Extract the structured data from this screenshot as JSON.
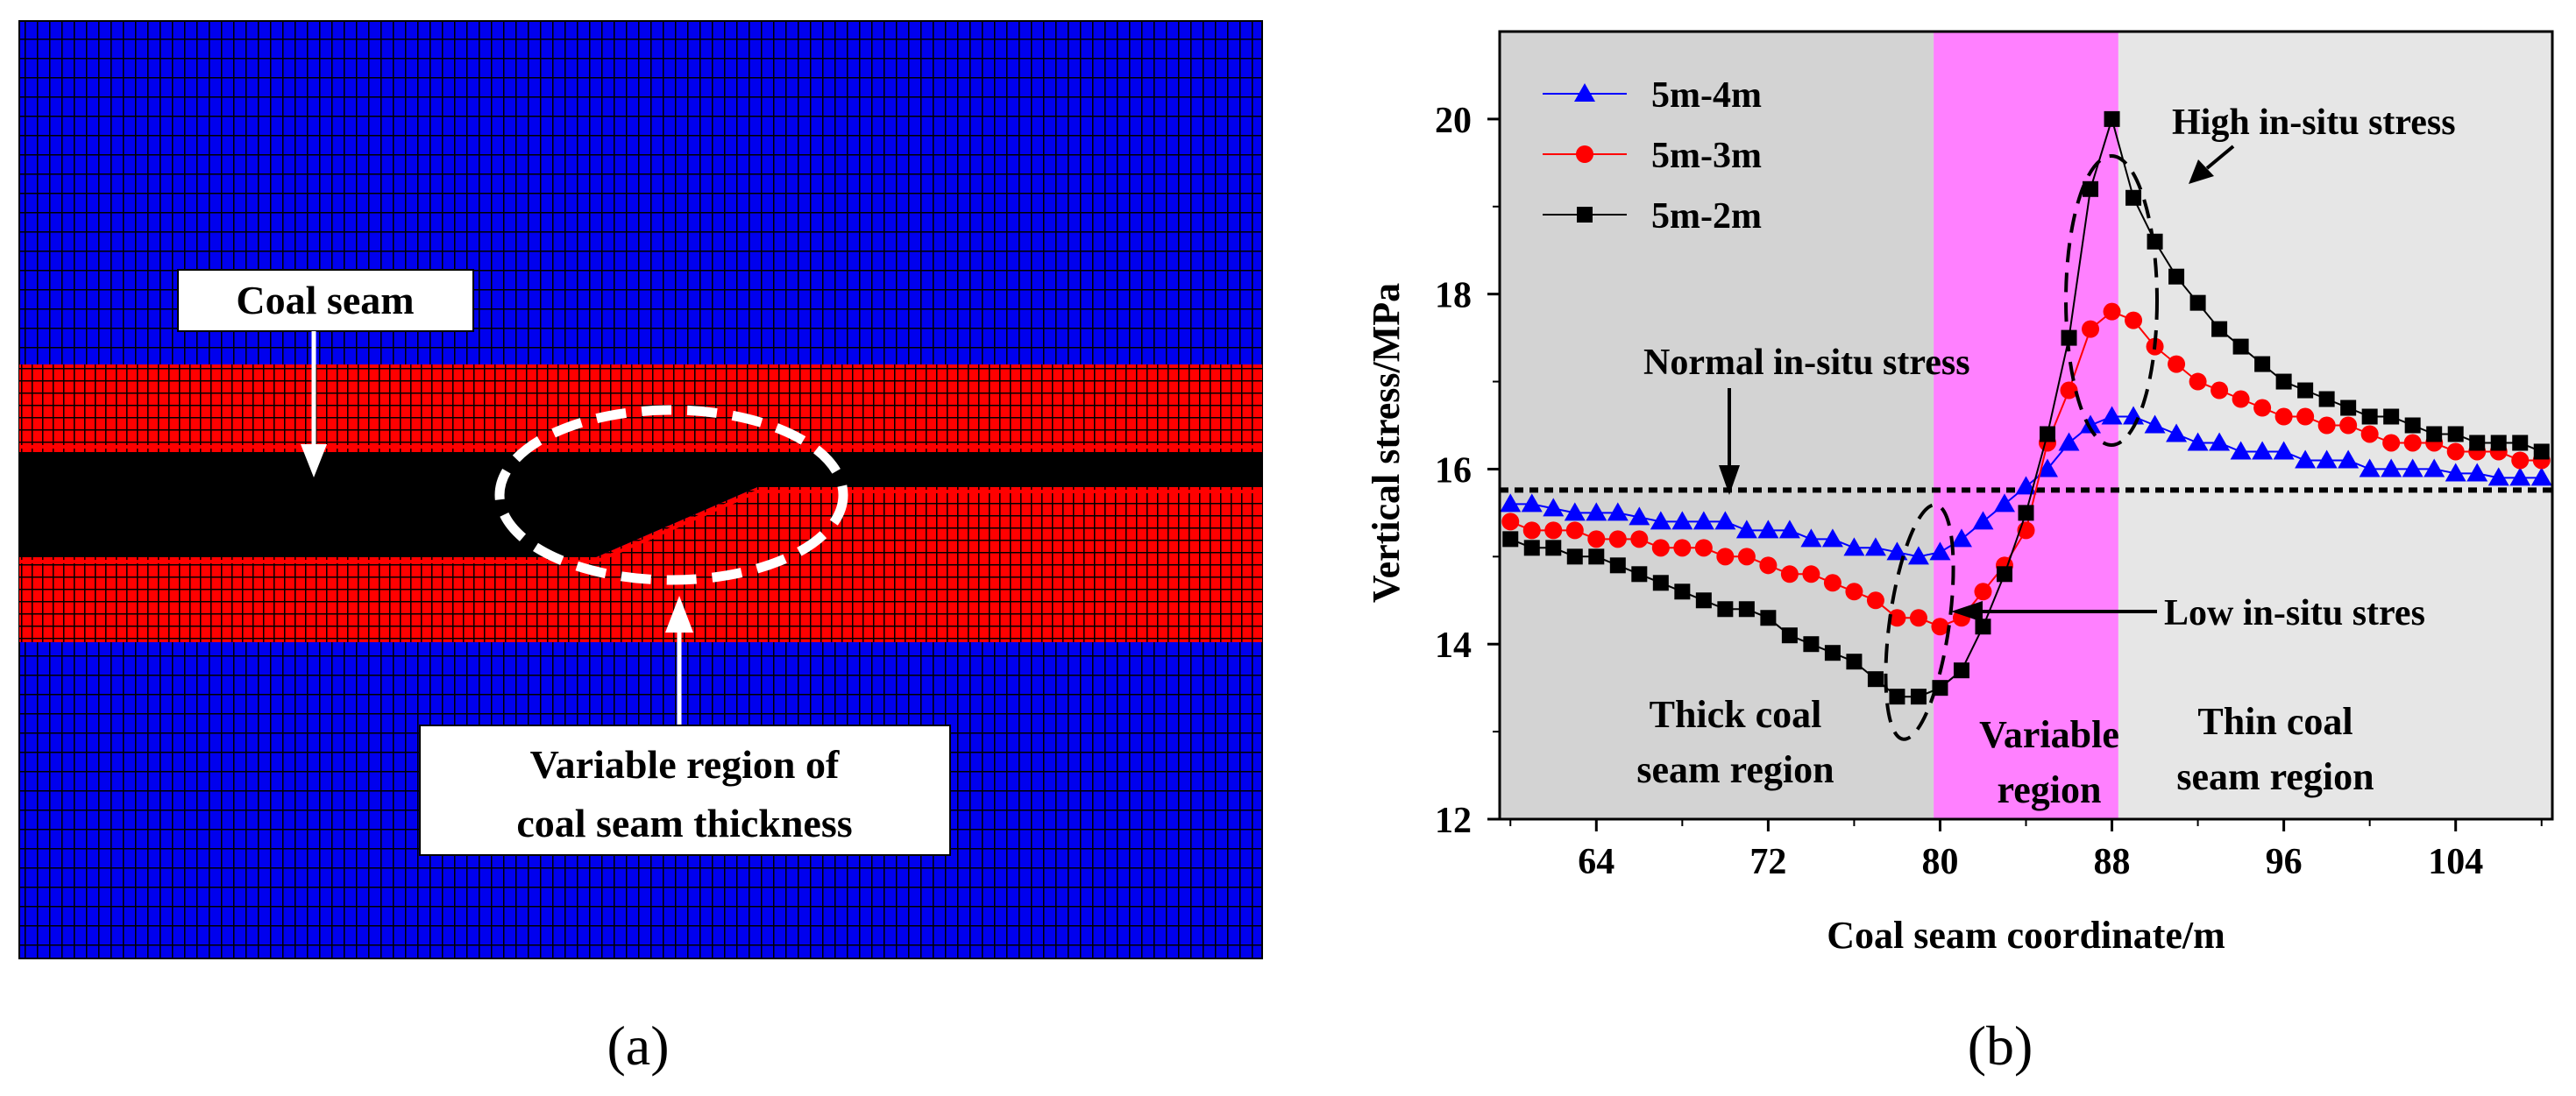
{
  "panel_a": {
    "letter": "(a)",
    "coal_seam_label": "Coal seam",
    "variable_region_label_line1": "Variable region of",
    "variable_region_label_line2": "coal seam thickness",
    "colors": {
      "rock": "#0000ee",
      "transition": "#ff0000",
      "coal": "#000000",
      "mesh": "#000000",
      "callout": "#ffffff"
    }
  },
  "panel_b": {
    "letter": "(b)",
    "normal_label": "Normal in-situ stress",
    "high_label": "High in-situ stress",
    "low_label": "Low in-situ stres",
    "thick_region_line1": "Thick coal",
    "thick_region_line2": "seam region",
    "variable_region_line1": "Variable",
    "variable_region_line2": "region",
    "thin_region_line1": "Thin coal",
    "thin_region_line2": "seam region",
    "colors": {
      "thick_bg": "#d3d3d3",
      "variable_bg": "#ff80ff",
      "thin_bg": "#e6e6e6"
    }
  },
  "chart_data": {
    "type": "line",
    "xlabel": "Coal seam coordinate/m",
    "ylabel": "Vertical stress/MPa",
    "xlim": [
      59.5,
      108.5
    ],
    "ylim": [
      12,
      21
    ],
    "xticks": [
      64,
      72,
      80,
      88,
      96,
      104
    ],
    "yticks": [
      12,
      14,
      16,
      18,
      20
    ],
    "normal_stress_level": 15.76,
    "regions": [
      {
        "name": "thick",
        "from": 59.5,
        "to": 79.7
      },
      {
        "name": "variable",
        "from": 79.7,
        "to": 88.3
      },
      {
        "name": "thin",
        "from": 88.3,
        "to": 108.5
      }
    ],
    "x": [
      60,
      61,
      62,
      63,
      64,
      65,
      66,
      67,
      68,
      69,
      70,
      71,
      72,
      73,
      74,
      75,
      76,
      77,
      78,
      79,
      80,
      81,
      82,
      83,
      84,
      85,
      86,
      87,
      88,
      89,
      90,
      91,
      92,
      93,
      94,
      95,
      96,
      97,
      98,
      99,
      100,
      101,
      102,
      103,
      104,
      105,
      106,
      107,
      108
    ],
    "series": [
      {
        "name": "5m-4m",
        "color": "#0000ff",
        "marker": "triangle",
        "values": [
          15.6,
          15.6,
          15.55,
          15.5,
          15.5,
          15.5,
          15.45,
          15.4,
          15.4,
          15.4,
          15.4,
          15.3,
          15.3,
          15.3,
          15.2,
          15.2,
          15.1,
          15.1,
          15.05,
          15.0,
          15.05,
          15.2,
          15.4,
          15.6,
          15.8,
          16.0,
          16.3,
          16.5,
          16.6,
          16.6,
          16.5,
          16.4,
          16.3,
          16.3,
          16.2,
          16.2,
          16.2,
          16.1,
          16.1,
          16.1,
          16.0,
          16.0,
          16.0,
          16.0,
          15.95,
          15.95,
          15.9,
          15.9,
          15.9
        ]
      },
      {
        "name": "5m-3m",
        "color": "#ff0000",
        "marker": "circle",
        "values": [
          15.4,
          15.3,
          15.3,
          15.3,
          15.2,
          15.2,
          15.2,
          15.1,
          15.1,
          15.1,
          15.0,
          15.0,
          14.9,
          14.8,
          14.8,
          14.7,
          14.6,
          14.5,
          14.3,
          14.3,
          14.2,
          14.3,
          14.6,
          14.9,
          15.3,
          16.3,
          16.9,
          17.6,
          17.8,
          17.7,
          17.4,
          17.2,
          17.0,
          16.9,
          16.8,
          16.7,
          16.6,
          16.6,
          16.5,
          16.5,
          16.4,
          16.3,
          16.3,
          16.3,
          16.2,
          16.2,
          16.2,
          16.1,
          16.1
        ]
      },
      {
        "name": "5m-2m",
        "color": "#000000",
        "marker": "square",
        "values": [
          15.2,
          15.1,
          15.1,
          15.0,
          15.0,
          14.9,
          14.8,
          14.7,
          14.6,
          14.5,
          14.4,
          14.4,
          14.3,
          14.1,
          14.0,
          13.9,
          13.8,
          13.6,
          13.4,
          13.4,
          13.5,
          13.7,
          14.2,
          14.8,
          15.5,
          16.4,
          17.5,
          19.2,
          20.0,
          19.1,
          18.6,
          18.2,
          17.9,
          17.6,
          17.4,
          17.2,
          17.0,
          16.9,
          16.8,
          16.7,
          16.6,
          16.6,
          16.5,
          16.4,
          16.4,
          16.3,
          16.3,
          16.3,
          16.2
        ]
      }
    ]
  }
}
